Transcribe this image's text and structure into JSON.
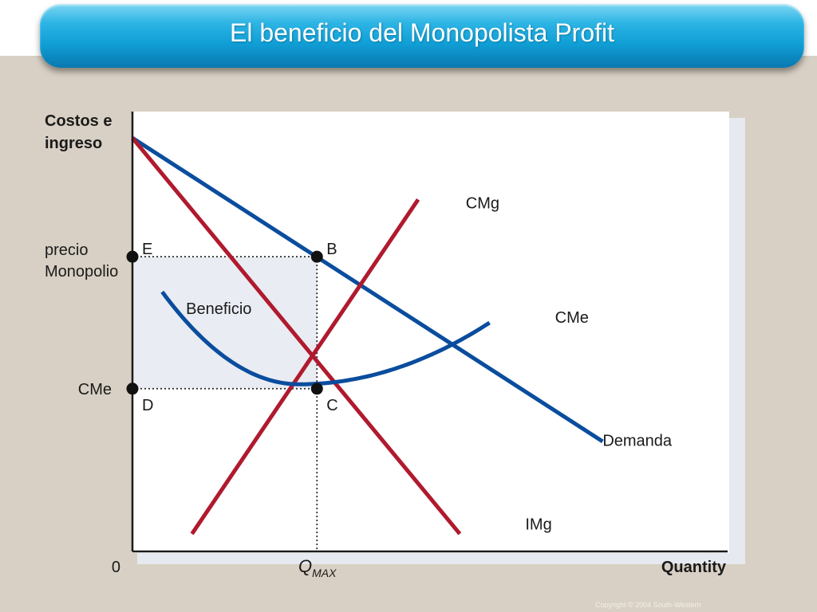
{
  "slide": {
    "title": "El beneficio del Monopolista Profit",
    "copyright": "Copyright © 2004  South-Western"
  },
  "colors": {
    "title_bar": "#1aa6dc",
    "demand_curve": "#0a4d9e",
    "cme_curve": "#0a4d9e",
    "cmg_curve": "#b01a2e",
    "img_curve": "#b01a2e",
    "profit_area": "#e9ecf2",
    "background": "#d8d0c4"
  },
  "chart_data": {
    "type": "line",
    "title": "",
    "ylabel": "Costos e ingreso",
    "xlabel": "Quantity",
    "origin_label": "0",
    "xlim": [
      0,
      100
    ],
    "ylim": [
      0,
      100
    ],
    "grid": false,
    "qmax": {
      "main": "Q",
      "sub": "MAX",
      "x": 31
    },
    "series": [
      {
        "name": "Demanda",
        "kind": "linear",
        "color": "#0a4d9e",
        "points": [
          [
            0,
            94
          ],
          [
            79,
            25
          ]
        ]
      },
      {
        "name": "IMg",
        "kind": "linear",
        "color": "#b01a2e",
        "points": [
          [
            0,
            94
          ],
          [
            55,
            4
          ]
        ]
      },
      {
        "name": "CMg",
        "kind": "linear",
        "color": "#b01a2e",
        "points": [
          [
            10,
            4
          ],
          [
            48,
            80
          ]
        ]
      },
      {
        "name": "CMe",
        "kind": "parabola",
        "color": "#0a4d9e",
        "vertex": [
          28,
          38
        ],
        "points": [
          [
            5,
            59
          ],
          [
            60,
            52
          ]
        ]
      }
    ],
    "curve_labels": [
      {
        "text": "CMg",
        "x": 56,
        "y": 78
      },
      {
        "text": "CMe",
        "x": 71,
        "y": 52
      },
      {
        "text": "Demanda",
        "x": 79,
        "y": 24
      },
      {
        "text": "IMg",
        "x": 66,
        "y": 5
      }
    ],
    "points": [
      {
        "label": "E",
        "x": 0,
        "y": 67
      },
      {
        "label": "B",
        "x": 31,
        "y": 67
      },
      {
        "label": "D",
        "x": 0,
        "y": 37
      },
      {
        "label": "C",
        "x": 31,
        "y": 37
      }
    ],
    "y_markers": [
      {
        "text": "precio\nMonopolio",
        "y": 67
      },
      {
        "text": "CMe",
        "y": 37
      }
    ],
    "area_label": "Beneficio",
    "area_label_pos": {
      "x": 9,
      "y": 54
    }
  }
}
